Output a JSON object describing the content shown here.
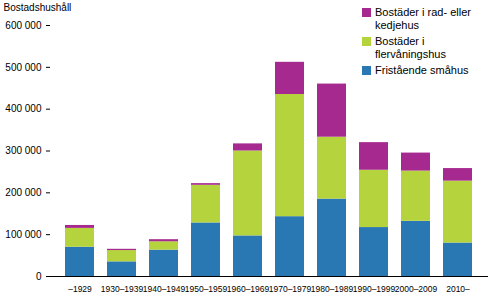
{
  "chart_data": {
    "type": "bar",
    "stacked": true,
    "y_label": "Bostadshushåll",
    "categories": [
      "–1929",
      "1930–1939",
      "1940–1949",
      "1950–1959",
      "1960–1969",
      "1970–1979",
      "1980–1989",
      "1990–1999",
      "2000–2009",
      "2010–"
    ],
    "series": [
      {
        "name": "Fristående småhus",
        "color": "#2a78b3",
        "values": [
          70000,
          35000,
          63000,
          128000,
          97000,
          143000,
          185000,
          117000,
          132000,
          80000
        ]
      },
      {
        "name": "Bostäder i flervåningshus",
        "color": "#b5d33c",
        "values": [
          45000,
          27000,
          20000,
          90000,
          203000,
          292000,
          148000,
          137000,
          120000,
          148000
        ]
      },
      {
        "name": "Bostäder i rad- eller kedjehus",
        "color": "#a6298f",
        "values": [
          7000,
          3000,
          5000,
          4000,
          17000,
          77000,
          127000,
          66000,
          43000,
          30000
        ]
      }
    ],
    "ylim": [
      0,
      600000
    ],
    "yticks": [
      0,
      {
        "value": 100000,
        "label": "100 000"
      },
      {
        "value": 200000,
        "label": "200 000"
      },
      {
        "value": 300000,
        "label": "300 000"
      },
      {
        "value": 400000,
        "label": "400 000"
      },
      {
        "value": 500000,
        "label": "500 000"
      },
      {
        "value": 600000,
        "label": "600 000"
      }
    ],
    "grid": false,
    "legend": "top-right"
  }
}
